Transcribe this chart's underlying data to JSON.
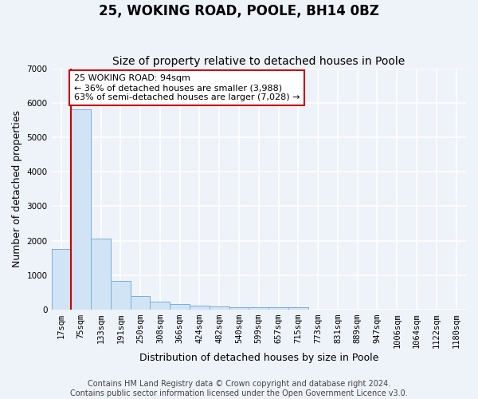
{
  "title": "25, WOKING ROAD, POOLE, BH14 0BZ",
  "subtitle": "Size of property relative to detached houses in Poole",
  "xlabel": "Distribution of detached houses by size in Poole",
  "ylabel": "Number of detached properties",
  "bin_labels": [
    "17sqm",
    "75sqm",
    "133sqm",
    "191sqm",
    "250sqm",
    "308sqm",
    "366sqm",
    "424sqm",
    "482sqm",
    "540sqm",
    "599sqm",
    "657sqm",
    "715sqm",
    "773sqm",
    "831sqm",
    "889sqm",
    "947sqm",
    "1006sqm",
    "1064sqm",
    "1122sqm",
    "1180sqm"
  ],
  "bar_heights": [
    1750,
    5820,
    2050,
    820,
    390,
    220,
    150,
    120,
    100,
    70,
    75,
    65,
    70,
    0,
    0,
    0,
    0,
    0,
    0,
    0,
    0
  ],
  "bar_color": "#d0e4f5",
  "bar_edgecolor": "#7aafd4",
  "subject_label_line1": "25 WOKING ROAD: 94sqm",
  "subject_label_line2": "← 36% of detached houses are smaller (3,988)",
  "subject_label_line3": "63% of semi-detached houses are larger (7,028) →",
  "annotation_box_facecolor": "#ffffff",
  "annotation_box_edgecolor": "#cc0000",
  "vline_color": "#cc0000",
  "vline_x": 0.5,
  "ylim": [
    0,
    7000
  ],
  "yticks": [
    0,
    1000,
    2000,
    3000,
    4000,
    5000,
    6000,
    7000
  ],
  "background_color": "#eef2f9",
  "plot_background_color": "#eef2f9",
  "grid_color": "#ffffff",
  "title_fontsize": 12,
  "subtitle_fontsize": 10,
  "axis_label_fontsize": 9,
  "tick_fontsize": 7.5,
  "annotation_fontsize": 8,
  "footer_fontsize": 7,
  "footer_line1": "Contains HM Land Registry data © Crown copyright and database right 2024.",
  "footer_line2": "Contains public sector information licensed under the Open Government Licence v3.0."
}
